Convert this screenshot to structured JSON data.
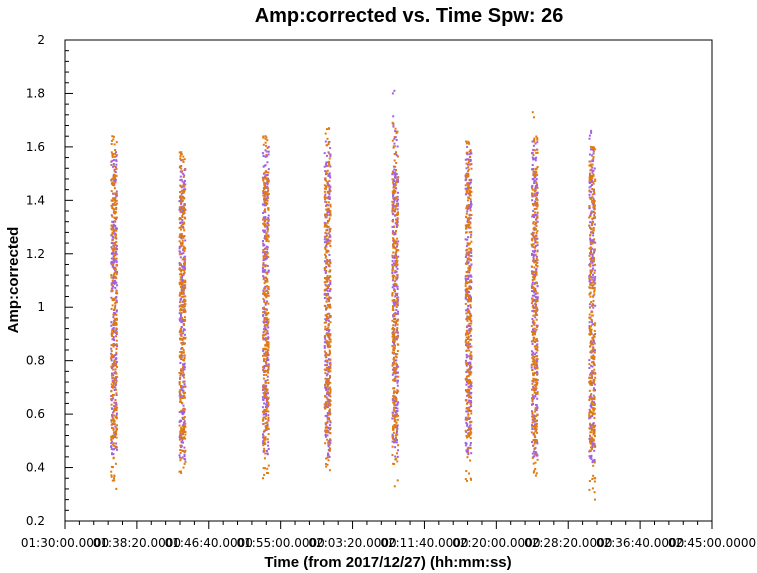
{
  "chart_data": {
    "type": "scatter",
    "title": "Amp:corrected vs. Time Spw: 26",
    "xlabel": "Time (from 2017/12/27) (hh:mm:ss)",
    "ylabel": "Amp:corrected",
    "xlim": [
      "01:30:00.0000",
      "02:45:00.0000"
    ],
    "ylim": [
      0.2,
      2.0
    ],
    "y_ticks": [
      "0.2",
      "0.4",
      "0.6",
      "0.8",
      "1",
      "1.2",
      "1.4",
      "1.6",
      "1.8",
      "2"
    ],
    "x_ticks": [
      "01:30:00.0000",
      "01:38:20.0000",
      "01:46:40.0000",
      "01:55:00.0000",
      "02:03:20.0000",
      "02:11:40.0000",
      "02:20:00.0000",
      "02:28:20.0000",
      "02:36:40.0000",
      "02:45:00.0000"
    ],
    "grid": false,
    "legend": "none",
    "series": [
      {
        "color": "#e07b10",
        "clusters": [
          {
            "time": "01:35:35",
            "y_min": 0.32,
            "y_max": 1.64,
            "dense_min": 0.48,
            "dense_max": 1.53
          },
          {
            "time": "01:43:30",
            "y_min": 0.38,
            "y_max": 1.58,
            "dense_min": 0.5,
            "dense_max": 1.47
          },
          {
            "time": "01:53:10",
            "y_min": 0.36,
            "y_max": 1.64,
            "dense_min": 0.5,
            "dense_max": 1.5
          },
          {
            "time": "02:00:20",
            "y_min": 0.39,
            "y_max": 1.67,
            "dense_min": 0.52,
            "dense_max": 1.52
          },
          {
            "time": "02:08:10",
            "y_min": 0.33,
            "y_max": 1.69,
            "dense_min": 0.52,
            "dense_max": 1.53
          },
          {
            "time": "02:16:40",
            "y_min": 0.35,
            "y_max": 1.62,
            "dense_min": 0.52,
            "dense_max": 1.52
          },
          {
            "time": "02:24:20",
            "y_min": 0.37,
            "y_max": 1.73,
            "dense_min": 0.5,
            "dense_max": 1.52
          },
          {
            "time": "02:31:00",
            "y_min": 0.28,
            "y_max": 1.6,
            "dense_min": 0.48,
            "dense_max": 1.5
          }
        ]
      },
      {
        "color": "#a060e0",
        "clusters": [
          {
            "time": "01:35:35",
            "y_min": 0.45,
            "y_max": 1.58,
            "dense_min": 0.5,
            "dense_max": 1.5
          },
          {
            "time": "01:43:30",
            "y_min": 0.43,
            "y_max": 1.55,
            "dense_min": 0.5,
            "dense_max": 1.47
          },
          {
            "time": "01:53:10",
            "y_min": 0.45,
            "y_max": 1.6,
            "dense_min": 0.52,
            "dense_max": 1.5
          },
          {
            "time": "02:00:20",
            "y_min": 0.44,
            "y_max": 1.62,
            "dense_min": 0.52,
            "dense_max": 1.52
          },
          {
            "time": "02:08:10",
            "y_min": 0.44,
            "y_max": 1.81,
            "dense_min": 0.52,
            "dense_max": 1.52
          },
          {
            "time": "02:16:40",
            "y_min": 0.45,
            "y_max": 1.6,
            "dense_min": 0.52,
            "dense_max": 1.52
          },
          {
            "time": "02:24:20",
            "y_min": 0.44,
            "y_max": 1.62,
            "dense_min": 0.5,
            "dense_max": 1.52
          },
          {
            "time": "02:31:00",
            "y_min": 0.42,
            "y_max": 1.66,
            "dense_min": 0.48,
            "dense_max": 1.52
          }
        ]
      }
    ]
  }
}
